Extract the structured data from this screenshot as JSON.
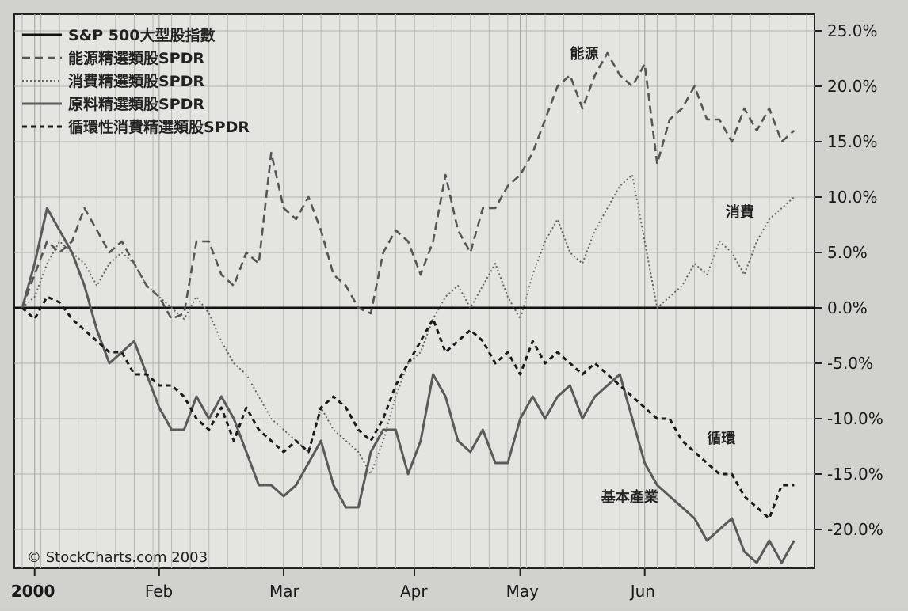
{
  "chart_data": {
    "type": "line",
    "title": "",
    "x_ticks": [
      "2000",
      "Feb",
      "Mar",
      "Apr",
      "May",
      "Jun"
    ],
    "y_ticks": [
      "25.0%",
      "20.0%",
      "15.0%",
      "10.0%",
      "5.0%",
      "0.0%",
      "-5.0%",
      "-10.0%",
      "-15.0%",
      "-20.0%"
    ],
    "ylim": [
      -23.5,
      26.5
    ],
    "xlim": [
      0,
      126
    ],
    "legend_position": "top-left",
    "grid": true,
    "copyright": "© StockCharts.com 2003",
    "annotations": [
      {
        "text": "能源",
        "x": 88,
        "y": 22.5
      },
      {
        "text": "消費",
        "x": 113,
        "y": 8.2
      },
      {
        "text": "循環",
        "x": 110,
        "y": -12.2
      },
      {
        "text": "基本產業",
        "x": 93,
        "y": -17.5
      }
    ],
    "series": [
      {
        "name": "S&P 500大型股指數",
        "style": "solid-thick",
        "x": [
          0,
          126
        ],
        "y": [
          0.0,
          0.0
        ]
      },
      {
        "name": "能源精選類股SPDR",
        "style": "dashed",
        "x": [
          0,
          2,
          4,
          6,
          8,
          10,
          12,
          14,
          16,
          18,
          20,
          22,
          24,
          26,
          28,
          30,
          32,
          34,
          36,
          38,
          40,
          42,
          44,
          46,
          48,
          50,
          52,
          54,
          56,
          58,
          60,
          62,
          64,
          66,
          68,
          70,
          72,
          74,
          76,
          78,
          80,
          82,
          84,
          86,
          88,
          90,
          92,
          94,
          96,
          98,
          100,
          102,
          104,
          106,
          108,
          110,
          112,
          114,
          116,
          118,
          120,
          122,
          124
        ],
        "y": [
          0,
          3,
          6,
          5,
          6,
          9,
          7,
          5,
          6,
          4,
          2,
          1,
          -1,
          -0.5,
          6,
          6,
          3,
          2,
          5,
          4,
          14,
          9,
          8,
          10,
          7,
          3,
          2,
          0,
          -0.5,
          5,
          7,
          6,
          3,
          6,
          12,
          7,
          5,
          9,
          9,
          11,
          12,
          14,
          17,
          20,
          21,
          18,
          21,
          23,
          21,
          20,
          22,
          13,
          17,
          18,
          20,
          17,
          17,
          15,
          18,
          16,
          18,
          15,
          16
        ]
      },
      {
        "name": "消費精選類股SPDR",
        "style": "dotted",
        "x": [
          0,
          2,
          4,
          6,
          8,
          10,
          12,
          14,
          16,
          18,
          20,
          22,
          24,
          26,
          28,
          30,
          32,
          34,
          36,
          38,
          40,
          42,
          44,
          46,
          48,
          50,
          52,
          54,
          56,
          58,
          60,
          62,
          64,
          66,
          68,
          70,
          72,
          74,
          76,
          78,
          80,
          82,
          84,
          86,
          88,
          90,
          92,
          94,
          96,
          98,
          100,
          102,
          104,
          106,
          108,
          110,
          112,
          114,
          116,
          118,
          120,
          122,
          124
        ],
        "y": [
          0,
          1,
          4,
          6,
          5,
          4,
          2,
          4,
          5,
          4,
          2,
          1,
          0,
          -1,
          1,
          -0.5,
          -3,
          -5,
          -6,
          -8,
          -10,
          -11,
          -12,
          -13,
          -9,
          -11,
          -12,
          -13,
          -15,
          -12,
          -8,
          -5,
          -4,
          -1,
          1,
          2,
          0,
          2,
          4,
          1,
          -1,
          3,
          6,
          8,
          5,
          4,
          7,
          9,
          11,
          12,
          6,
          0,
          1,
          2,
          4,
          3,
          6,
          5,
          3,
          6,
          8,
          9,
          10
        ]
      },
      {
        "name": "原料精選類股SPDR",
        "style": "solid",
        "x": [
          0,
          2,
          4,
          6,
          8,
          10,
          12,
          14,
          16,
          18,
          20,
          22,
          24,
          26,
          28,
          30,
          32,
          34,
          36,
          38,
          40,
          42,
          44,
          46,
          48,
          50,
          52,
          54,
          56,
          58,
          60,
          62,
          64,
          66,
          68,
          70,
          72,
          74,
          76,
          78,
          80,
          82,
          84,
          86,
          88,
          90,
          92,
          94,
          96,
          98,
          100,
          102,
          104,
          106,
          108,
          110,
          112,
          114,
          116,
          118,
          120,
          122,
          124
        ],
        "y": [
          0,
          4,
          9,
          7,
          5,
          2,
          -2,
          -5,
          -4,
          -3,
          -6,
          -9,
          -11,
          -11,
          -8,
          -10,
          -8,
          -10,
          -13,
          -16,
          -16,
          -17,
          -16,
          -14,
          -12,
          -16,
          -18,
          -18,
          -13,
          -11,
          -11,
          -15,
          -12,
          -6,
          -8,
          -12,
          -13,
          -11,
          -14,
          -14,
          -10,
          -8,
          -10,
          -8,
          -7,
          -10,
          -8,
          -7,
          -6,
          -10,
          -14,
          -16,
          -17,
          -18,
          -19,
          -21,
          -20,
          -19,
          -22,
          -23,
          -21,
          -23,
          -21
        ]
      },
      {
        "name": "循環性消費精選類股SPDR",
        "style": "dashed-thick",
        "x": [
          0,
          2,
          4,
          6,
          8,
          10,
          12,
          14,
          16,
          18,
          20,
          22,
          24,
          26,
          28,
          30,
          32,
          34,
          36,
          38,
          40,
          42,
          44,
          46,
          48,
          50,
          52,
          54,
          56,
          58,
          60,
          62,
          64,
          66,
          68,
          70,
          72,
          74,
          76,
          78,
          80,
          82,
          84,
          86,
          88,
          90,
          92,
          94,
          96,
          98,
          100,
          102,
          104,
          106,
          108,
          110,
          112,
          114,
          116,
          118,
          120,
          122,
          124
        ],
        "y": [
          0,
          -1,
          1,
          0.5,
          -1,
          -2,
          -3,
          -4,
          -4,
          -6,
          -6,
          -7,
          -7,
          -8,
          -10,
          -11,
          -9,
          -12,
          -9,
          -11,
          -12,
          -13,
          -12,
          -13,
          -9,
          -8,
          -9,
          -11,
          -12,
          -10,
          -7,
          -5,
          -3,
          -1,
          -4,
          -3,
          -2,
          -3,
          -5,
          -4,
          -6,
          -3,
          -5,
          -4,
          -5,
          -6,
          -5,
          -6,
          -7,
          -8,
          -9,
          -10,
          -10,
          -12,
          -13,
          -14,
          -15,
          -15,
          -17,
          -18,
          -19,
          -16,
          -16
        ]
      }
    ]
  }
}
